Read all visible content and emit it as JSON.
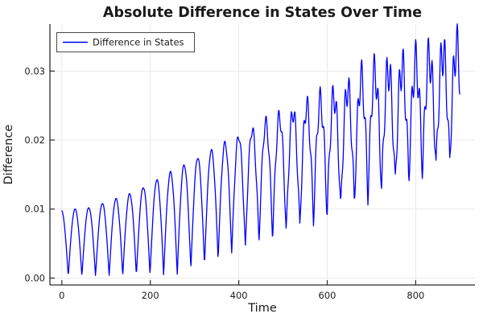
{
  "colors": {
    "series_blue": "#0000ff",
    "grid": "#e9e9e9",
    "spine": "#2b2b2b",
    "legend_border": "#4a4a4a",
    "background": "#ffffff"
  },
  "chart_data": {
    "type": "line",
    "title": "Absolute Difference in States Over Time",
    "xlabel": "Time",
    "ylabel": "Difference",
    "xlim": [
      -27,
      934
    ],
    "ylim": [
      -0.001,
      0.0368
    ],
    "grid": true,
    "legend_position": "top-left",
    "x_ticks": [
      {
        "v": 0,
        "label": "0"
      },
      {
        "v": 200,
        "label": "200"
      },
      {
        "v": 400,
        "label": "400"
      },
      {
        "v": 600,
        "label": "600"
      },
      {
        "v": 800,
        "label": "800"
      }
    ],
    "y_ticks": [
      {
        "v": 0.0,
        "label": "0.00"
      },
      {
        "v": 0.01,
        "label": "0.01"
      },
      {
        "v": 0.02,
        "label": "0.02"
      },
      {
        "v": 0.03,
        "label": "0.03"
      }
    ],
    "series": [
      {
        "name": "Difference in States",
        "color": "#0000ff",
        "x_range": [
          0,
          900
        ],
        "sample_step": 1,
        "model": {
          "description": "y(t)=floor(t)+(peak(t)-floor(t))*|cos(pi*(t+phase)/period)| + jag_amp(t)*sin(2*pi*t/jag_period+jag_phase)*(jag_weight_min+(1-jag_weight_min)*|cos|), clamped at min_clip. Envelope knots are values read off the plotted curve.",
          "period": 30.8,
          "phase": 0.9,
          "peak_env": [
            [
              0,
              0.0098
            ],
            [
              60,
              0.0102
            ],
            [
              100,
              0.011
            ],
            [
              150,
              0.0121
            ],
            [
              185,
              0.0132
            ],
            [
              250,
              0.0155
            ],
            [
              311,
              0.0176
            ],
            [
              400,
              0.0206
            ],
            [
              500,
              0.0236
            ],
            [
              630,
              0.0268
            ],
            [
              690,
              0.0296
            ],
            [
              790,
              0.031
            ],
            [
              890,
              0.0335
            ],
            [
              930,
              0.034
            ]
          ],
          "floor_env": [
            [
              0,
              0.0002
            ],
            [
              260,
              0.0004
            ],
            [
              290,
              0.0012
            ],
            [
              322,
              0.0018
            ],
            [
              353,
              0.0027
            ],
            [
              384,
              0.0035
            ],
            [
              415,
              0.0043
            ],
            [
              446,
              0.0052
            ],
            [
              480,
              0.0058
            ],
            [
              560,
              0.0078
            ],
            [
              640,
              0.0101
            ],
            [
              700,
              0.0118
            ],
            [
              800,
              0.0148
            ],
            [
              900,
              0.0172
            ]
          ],
          "jag_amp": [
            [
              0,
              0
            ],
            [
              350,
              0.0002
            ],
            [
              450,
              0.001
            ],
            [
              550,
              0.0018
            ],
            [
              650,
              0.0026
            ],
            [
              750,
              0.0032
            ],
            [
              900,
              0.0036
            ]
          ],
          "jag_period": 9.4,
          "jag_phase": 0.8,
          "jag_weight_min": 0.4,
          "min_clip": 0.00015
        }
      }
    ]
  }
}
